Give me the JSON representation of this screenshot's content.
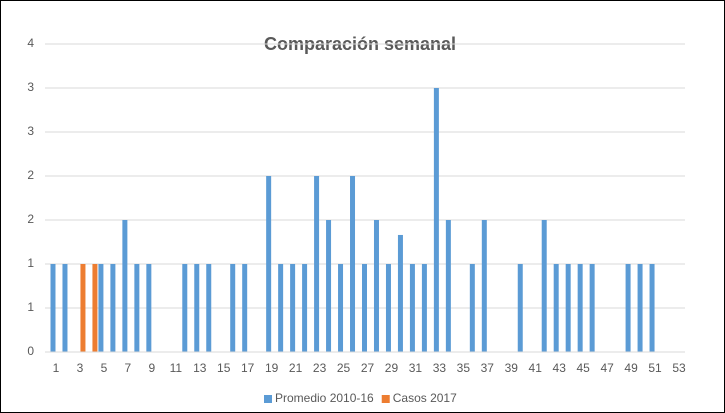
{
  "chart_data": {
    "type": "bar",
    "title": "Comparación semanal",
    "categories": [
      1,
      null,
      3,
      null,
      5,
      null,
      7,
      null,
      9,
      null,
      11,
      null,
      13,
      null,
      15,
      null,
      17,
      null,
      19,
      null,
      21,
      null,
      23,
      null,
      25,
      null,
      27,
      null,
      29,
      null,
      31,
      null,
      33,
      null,
      35,
      null,
      37,
      null,
      39,
      null,
      41,
      null,
      43,
      null,
      45,
      null,
      47,
      null,
      49,
      null,
      51,
      null,
      53
    ],
    "series": [
      {
        "name": "Promedio 2010-16",
        "color": "#5b9bd5",
        "values": [
          1,
          1,
          0,
          0,
          1,
          1,
          1.5,
          1,
          1,
          0,
          0,
          1,
          1,
          1,
          0,
          1,
          1,
          0,
          2,
          1,
          1,
          1,
          2,
          1.5,
          1,
          2,
          1,
          1.5,
          1,
          1.33,
          1,
          1,
          3,
          1.5,
          0,
          1,
          1.5,
          0,
          0,
          1,
          0,
          1.5,
          1,
          1,
          1,
          1,
          0,
          0,
          1,
          1,
          1,
          0,
          0
        ]
      },
      {
        "name": "Casos 2017",
        "color": "#ed7d31",
        "values": [
          0,
          0,
          1,
          1,
          0,
          0,
          0,
          0,
          0,
          0,
          0,
          0,
          0,
          0,
          0,
          0,
          0,
          0,
          0,
          0,
          0,
          0,
          0,
          0,
          0,
          0,
          0,
          0,
          0,
          0,
          0,
          0,
          0,
          0,
          0,
          0,
          0,
          0,
          0,
          0,
          0,
          0,
          0,
          0,
          0,
          0,
          0,
          0,
          0,
          0,
          0,
          0,
          0
        ]
      }
    ],
    "ylim": [
      0,
      3.5
    ],
    "yticks": [
      0,
      {
        "value": 0.5,
        "label": "1"
      },
      {
        "value": 1,
        "label": "1"
      },
      {
        "value": 1.5,
        "label": "2"
      },
      {
        "value": 2,
        "label": "2"
      },
      {
        "value": 2.5,
        "label": "3"
      },
      {
        "value": 3,
        "label": "3"
      },
      {
        "value": 3.5,
        "label": "4"
      }
    ],
    "grid": true
  }
}
